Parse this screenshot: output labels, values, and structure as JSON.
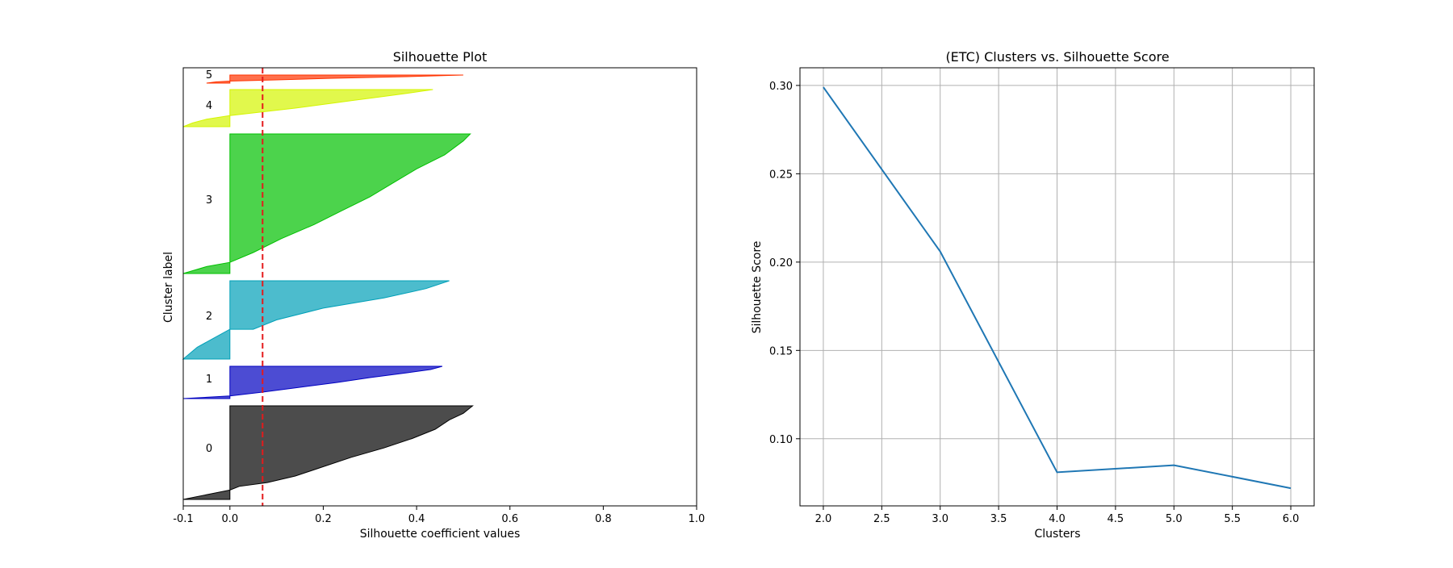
{
  "chart_data": [
    {
      "type": "area",
      "title": "Silhouette Plot",
      "xlabel": "Silhouette coefficient values",
      "ylabel": "Cluster label",
      "xlim": [
        -0.1,
        1.0
      ],
      "xticks": [
        "-0.1",
        "0.0",
        "0.2",
        "0.4",
        "0.6",
        "0.8",
        "1.0"
      ],
      "xtick_values": [
        -0.1,
        0.0,
        0.2,
        0.4,
        0.6,
        0.8,
        1.0
      ],
      "average_silhouette": 0.07,
      "reference_line_color": "#e41a1c",
      "clusters": [
        {
          "label": "0",
          "color": "#000000",
          "min": -0.1,
          "max": 0.52,
          "profile": [
            [
              0,
              0.52
            ],
            [
              0.08,
              0.5
            ],
            [
              0.15,
              0.47
            ],
            [
              0.25,
              0.44
            ],
            [
              0.35,
              0.39
            ],
            [
              0.45,
              0.33
            ],
            [
              0.55,
              0.26
            ],
            [
              0.65,
              0.2
            ],
            [
              0.75,
              0.14
            ],
            [
              0.82,
              0.08
            ],
            [
              0.86,
              0.02
            ],
            [
              0.9,
              0.0
            ],
            [
              0.94,
              -0.04
            ],
            [
              1.0,
              -0.1
            ]
          ]
        },
        {
          "label": "1",
          "color": "#0000c0",
          "min": -0.1,
          "max": 0.455,
          "profile": [
            [
              0,
              0.455
            ],
            [
              0.1,
              0.43
            ],
            [
              0.2,
              0.38
            ],
            [
              0.35,
              0.3
            ],
            [
              0.5,
              0.23
            ],
            [
              0.65,
              0.15
            ],
            [
              0.8,
              0.07
            ],
            [
              0.92,
              0.0
            ],
            [
              0.96,
              -0.05
            ],
            [
              1.0,
              -0.1
            ]
          ]
        },
        {
          "label": "2",
          "color": "#00a0b8",
          "min": -0.1,
          "max": 0.47,
          "profile": [
            [
              0,
              0.47
            ],
            [
              0.1,
              0.42
            ],
            [
              0.22,
              0.33
            ],
            [
              0.35,
              0.2
            ],
            [
              0.5,
              0.1
            ],
            [
              0.62,
              0.05
            ],
            [
              0.62,
              0.0
            ],
            [
              0.75,
              -0.04
            ],
            [
              0.85,
              -0.07
            ],
            [
              1.0,
              -0.1
            ]
          ]
        },
        {
          "label": "3",
          "color": "#00c000",
          "min": -0.1,
          "max": 0.515,
          "profile": [
            [
              0,
              0.515
            ],
            [
              0.05,
              0.5
            ],
            [
              0.15,
              0.46
            ],
            [
              0.25,
              0.4
            ],
            [
              0.35,
              0.35
            ],
            [
              0.45,
              0.3
            ],
            [
              0.55,
              0.24
            ],
            [
              0.65,
              0.18
            ],
            [
              0.75,
              0.11
            ],
            [
              0.85,
              0.05
            ],
            [
              0.92,
              0.0
            ],
            [
              0.95,
              -0.05
            ],
            [
              1.0,
              -0.1
            ]
          ]
        },
        {
          "label": "4",
          "color": "#d4f500",
          "min": -0.1,
          "max": 0.435,
          "profile": [
            [
              0,
              0.435
            ],
            [
              0.1,
              0.38
            ],
            [
              0.2,
              0.32
            ],
            [
              0.3,
              0.26
            ],
            [
              0.4,
              0.2
            ],
            [
              0.5,
              0.14
            ],
            [
              0.6,
              0.07
            ],
            [
              0.7,
              0.0
            ],
            [
              0.8,
              -0.05
            ],
            [
              0.9,
              -0.08
            ],
            [
              1.0,
              -0.1
            ]
          ]
        },
        {
          "label": "5",
          "color": "#ff3300",
          "min": -0.05,
          "max": 0.5,
          "profile": [
            [
              0,
              0.5
            ],
            [
              0.2,
              0.38
            ],
            [
              0.4,
              0.22
            ],
            [
              0.6,
              0.1
            ],
            [
              0.75,
              0.0
            ],
            [
              0.85,
              -0.03
            ],
            [
              1.0,
              -0.05
            ]
          ]
        }
      ]
    },
    {
      "type": "line",
      "title": "(ETC) Clusters vs. Silhouette Score",
      "xlabel": "Clusters",
      "ylabel": "Silhouette Score",
      "x": [
        2,
        3,
        4,
        5,
        6
      ],
      "y": [
        0.299,
        0.206,
        0.081,
        0.085,
        0.072
      ],
      "xlim": [
        1.8,
        6.2
      ],
      "ylim": [
        0.062,
        0.31
      ],
      "xticks": [
        "2.0",
        "2.5",
        "3.0",
        "3.5",
        "4.0",
        "4.5",
        "5.0",
        "5.5",
        "6.0"
      ],
      "xtick_values": [
        2.0,
        2.5,
        3.0,
        3.5,
        4.0,
        4.5,
        5.0,
        5.5,
        6.0
      ],
      "yticks": [
        "0.10",
        "0.15",
        "0.20",
        "0.25",
        "0.30"
      ],
      "ytick_values": [
        0.1,
        0.15,
        0.2,
        0.25,
        0.3
      ],
      "grid": true,
      "line_color": "#1f77b4"
    }
  ]
}
